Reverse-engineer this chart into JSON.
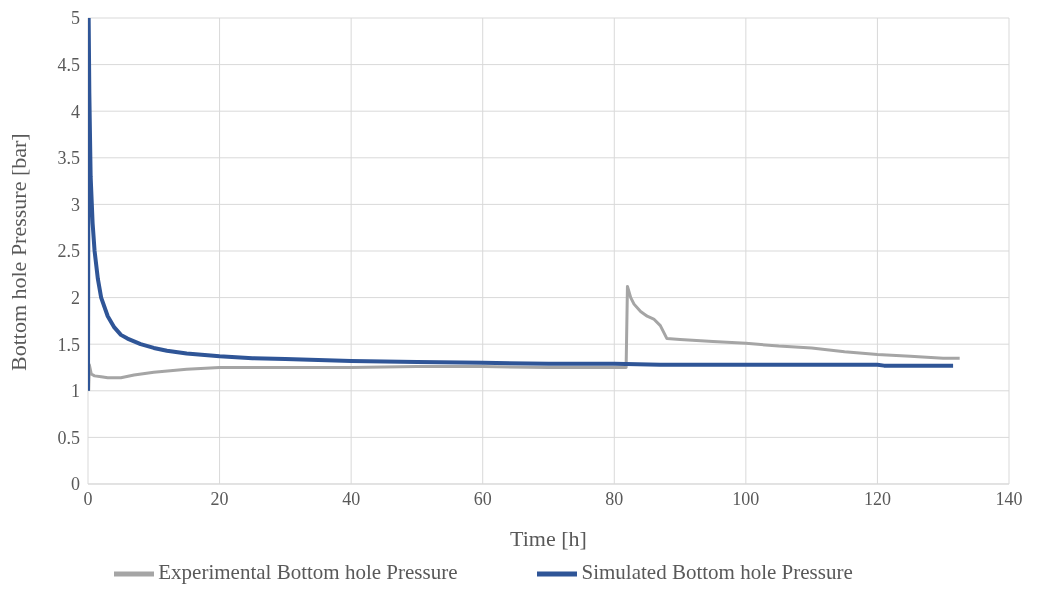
{
  "chart_data": {
    "type": "line",
    "xlabel": "Time [h]",
    "ylabel": "Bottom hole Pressure [bar]",
    "xlim": [
      0,
      140
    ],
    "xticks": [
      0,
      20,
      40,
      60,
      80,
      100,
      120,
      140
    ],
    "ylim": [
      0,
      5
    ],
    "yticks": [
      0,
      0.5,
      1,
      1.5,
      2,
      2.5,
      3,
      3.5,
      4,
      4.5,
      5
    ],
    "grid": true,
    "legend": "bottom",
    "marker": "none",
    "line_style": "solid",
    "series": [
      {
        "name": "Experimental Bottom hole Pressure",
        "color": "#a5a5a5",
        "x": [
          0.1,
          0.2,
          0.5,
          1,
          2,
          3,
          5,
          7,
          10,
          15,
          20,
          30,
          40,
          50,
          60,
          70,
          81.8,
          82,
          82.5,
          83,
          84,
          85,
          86,
          87,
          88,
          90,
          95,
          100,
          105,
          110,
          115,
          120,
          125,
          130,
          132.5
        ],
        "values": [
          1.0,
          1.28,
          1.18,
          1.16,
          1.15,
          1.14,
          1.14,
          1.17,
          1.2,
          1.23,
          1.25,
          1.25,
          1.25,
          1.26,
          1.26,
          1.25,
          1.25,
          2.12,
          2.0,
          1.93,
          1.85,
          1.8,
          1.77,
          1.7,
          1.56,
          1.55,
          1.53,
          1.51,
          1.48,
          1.46,
          1.42,
          1.39,
          1.37,
          1.35,
          1.35
        ]
      },
      {
        "name": "Simulated Bottom hole Pressure",
        "color": "#2f5597",
        "x": [
          0,
          0.1,
          0.2,
          0.4,
          0.7,
          1,
          1.5,
          2,
          3,
          4,
          5,
          6,
          8,
          10,
          12,
          15,
          20,
          25,
          30,
          40,
          50,
          60,
          70,
          80,
          87,
          100,
          120,
          121,
          131.5
        ],
        "values": [
          1.0,
          5,
          4.2,
          3.3,
          2.8,
          2.5,
          2.2,
          2.0,
          1.8,
          1.68,
          1.6,
          1.56,
          1.5,
          1.46,
          1.43,
          1.4,
          1.37,
          1.35,
          1.34,
          1.32,
          1.31,
          1.3,
          1.29,
          1.29,
          1.28,
          1.28,
          1.28,
          1.27,
          1.27
        ]
      }
    ]
  }
}
